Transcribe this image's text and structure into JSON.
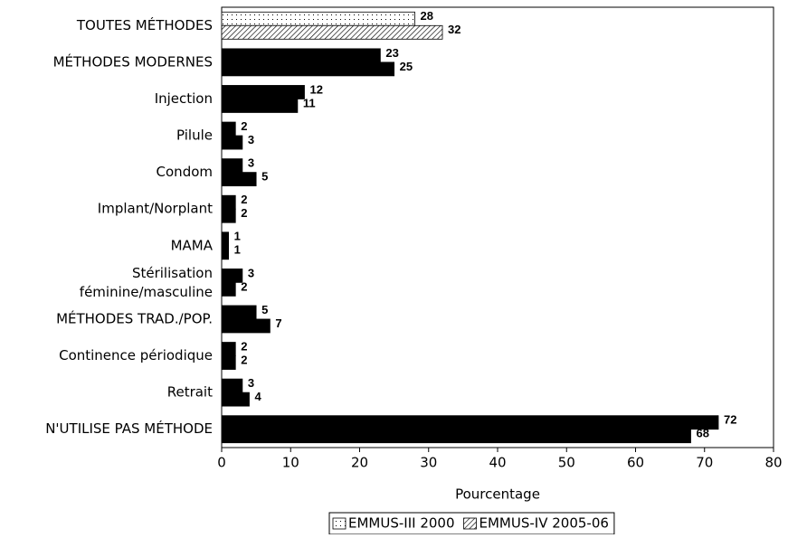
{
  "chart_data": {
    "type": "hbar",
    "categories": [
      "TOUTES MÉTHODES",
      "MÉTHODES MODERNES",
      "Injection",
      "Pilule",
      "Condom",
      "Implant/Norplant",
      "MAMA",
      "Stérilisation\nféminine/masculine",
      "MÉTHODES TRAD./POP.",
      "Continence périodique",
      "Retrait",
      "N'UTILISE PAS MÉTHODE"
    ],
    "series": [
      {
        "name": "EMMUS-III 2000",
        "color": "#000000",
        "pattern": "dots",
        "values": [
          28,
          23,
          12,
          2,
          3,
          2,
          1,
          3,
          5,
          2,
          3,
          72
        ]
      },
      {
        "name": "EMMUS-IV 2005-06",
        "color": "#000000",
        "pattern": "hatch",
        "values": [
          32,
          25,
          11,
          3,
          5,
          2,
          1,
          2,
          7,
          2,
          4,
          68
        ]
      }
    ],
    "patterned_category_indexes": [
      0
    ],
    "x_label": "Pourcentage",
    "xlim": [
      0,
      80
    ],
    "xticks": [
      0,
      10,
      20,
      30,
      40,
      50,
      60,
      70,
      80
    ],
    "legend": "bottom"
  }
}
